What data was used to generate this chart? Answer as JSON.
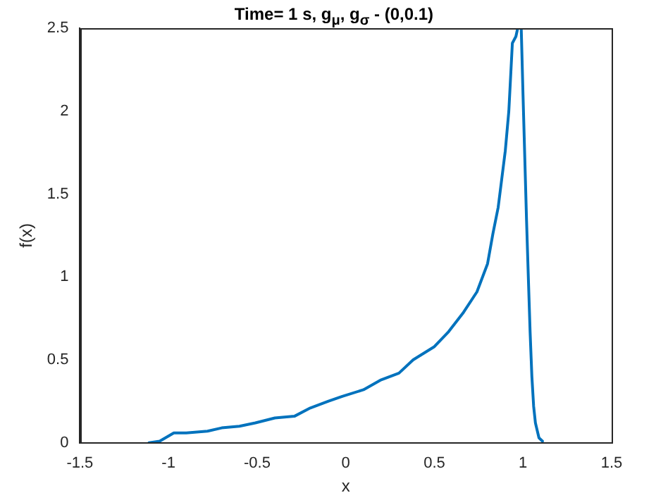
{
  "chart_data": {
    "type": "line",
    "title": "Time= 1 s, g$_{μ}$, g$_{σ}$ - (0,0.1)",
    "xlabel": "x",
    "ylabel": "f(x)",
    "xlim": [
      -1.5,
      1.5
    ],
    "xticks": [
      -1.5,
      -1,
      -0.5,
      0,
      0.5,
      1,
      1.5
    ],
    "ylim": [
      0,
      2.5
    ],
    "yticks": [
      0,
      0.5,
      1,
      1.5,
      2,
      2.5
    ],
    "grid": false,
    "legend": false,
    "marker": "none",
    "line_style": "solid",
    "series": [
      {
        "color": "#0072bd",
        "x": [
          -1.11,
          -1.05,
          -0.97,
          -0.9,
          -0.78,
          -0.7,
          -0.6,
          -0.51,
          -0.4,
          -0.29,
          -0.2,
          -0.1,
          -0.02,
          0.1,
          0.2,
          0.3,
          0.38,
          0.5,
          0.58,
          0.66,
          0.74,
          0.8,
          0.83,
          0.86,
          0.9,
          0.92,
          0.94,
          0.96,
          0.97,
          0.99,
          1.0,
          1.02,
          1.03,
          1.04,
          1.05,
          1.06,
          1.07,
          1.09,
          1.11
        ],
        "values": [
          0,
          0.01,
          0.06,
          0.06,
          0.07,
          0.09,
          0.1,
          0.12,
          0.15,
          0.16,
          0.21,
          0.25,
          0.28,
          0.32,
          0.38,
          0.42,
          0.5,
          0.58,
          0.67,
          0.78,
          0.91,
          1.08,
          1.26,
          1.42,
          1.76,
          2.0,
          2.41,
          2.45,
          2.5,
          2.5,
          2.1,
          1.34,
          1.0,
          0.67,
          0.4,
          0.22,
          0.12,
          0.03,
          0.01
        ]
      }
    ]
  }
}
